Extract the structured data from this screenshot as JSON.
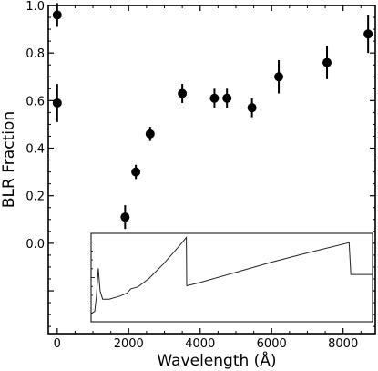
{
  "chart_data": {
    "type": "scatter",
    "xlabel": "Wavelength (Å)",
    "ylabel": "BLR Fraction",
    "xlim": [
      -250,
      8900
    ],
    "ylim": [
      -0.38,
      1.0
    ],
    "x_ticks": [
      0,
      2000,
      4000,
      6000,
      8000
    ],
    "y_ticks": [
      0.0,
      0.2,
      0.4,
      0.6,
      0.8,
      1.0
    ],
    "x_tick_labels": [
      "0",
      "2000",
      "4000",
      "6000",
      "8000"
    ],
    "y_tick_labels": [
      "0.0",
      "0.2",
      "0.4",
      "0.6",
      "0.8",
      "1.0"
    ],
    "series": [
      {
        "points": [
          {
            "x": 0,
            "y": 0.96,
            "err": 0.05
          },
          {
            "x": 0,
            "y": 0.59,
            "err": 0.08
          },
          {
            "x": 1900,
            "y": 0.11,
            "err": 0.05
          },
          {
            "x": 2200,
            "y": 0.3,
            "err": 0.03
          },
          {
            "x": 2600,
            "y": 0.46,
            "err": 0.03
          },
          {
            "x": 3500,
            "y": 0.63,
            "err": 0.04
          },
          {
            "x": 4400,
            "y": 0.61,
            "err": 0.04
          },
          {
            "x": 4750,
            "y": 0.61,
            "err": 0.04
          },
          {
            "x": 5450,
            "y": 0.57,
            "err": 0.04
          },
          {
            "x": 6200,
            "y": 0.7,
            "err": 0.07
          },
          {
            "x": 7550,
            "y": 0.76,
            "err": 0.07
          },
          {
            "x": 8700,
            "y": 0.88,
            "err": 0.08
          }
        ]
      }
    ],
    "inset": {
      "type": "line",
      "description": "spectrum-model",
      "x_range": [
        1000,
        8800
      ],
      "points": [
        [
          1000,
          0.08
        ],
        [
          1100,
          0.1
        ],
        [
          1150,
          0.25
        ],
        [
          1200,
          0.52
        ],
        [
          1250,
          0.3
        ],
        [
          1320,
          0.22
        ],
        [
          1500,
          0.22
        ],
        [
          1800,
          0.25
        ],
        [
          2000,
          0.28
        ],
        [
          2100,
          0.32
        ],
        [
          2300,
          0.34
        ],
        [
          2600,
          0.42
        ],
        [
          3000,
          0.56
        ],
        [
          3400,
          0.72
        ],
        [
          3640,
          0.82
        ],
        [
          3650,
          0.35
        ],
        [
          4000,
          0.38
        ],
        [
          5000,
          0.48
        ],
        [
          6000,
          0.58
        ],
        [
          7000,
          0.67
        ],
        [
          8150,
          0.77
        ],
        [
          8200,
          0.46
        ],
        [
          8800,
          0.46
        ]
      ]
    }
  }
}
